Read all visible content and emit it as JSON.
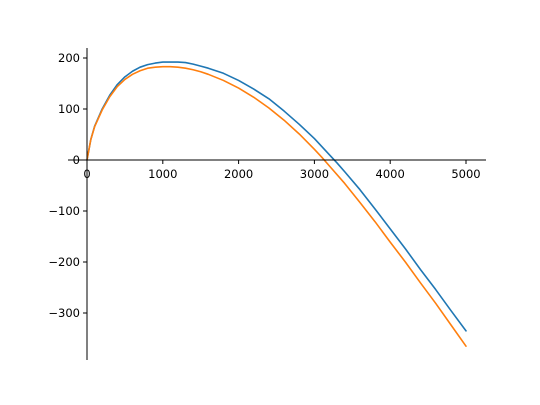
{
  "chart_data": {
    "type": "line",
    "title": "",
    "xlabel": "",
    "ylabel": "",
    "xlim": [
      0,
      5250
    ],
    "ylim": [
      -390,
      220
    ],
    "grid": false,
    "legend": "none",
    "spines": "zero-centered (left and bottom axes cross at origin)",
    "x_ticks": [
      0,
      1000,
      2000,
      3000,
      4000,
      5000
    ],
    "x_tick_labels": [
      "0",
      "1000",
      "2000",
      "3000",
      "4000",
      "5000"
    ],
    "y_ticks": [
      200,
      100,
      0,
      -100,
      -200,
      -300
    ],
    "y_tick_labels": [
      "200",
      "100",
      "0",
      "−100",
      "−200",
      "−300"
    ],
    "series": [
      {
        "color": "#1f77b4",
        "x": [
          0,
          50,
          100,
          200,
          300,
          400,
          500,
          600,
          700,
          800,
          900,
          1000,
          1100,
          1200,
          1300,
          1400,
          1500,
          1600,
          1800,
          2000,
          2200,
          2400,
          2600,
          2800,
          3000,
          3200,
          3300,
          3400,
          3600,
          3800,
          4000,
          4200,
          4400,
          4600,
          4800,
          5000
        ],
        "y": [
          0,
          40,
          66,
          100,
          127,
          148,
          163,
          174,
          182,
          187,
          190,
          192,
          192,
          192,
          191,
          188,
          184,
          180,
          170,
          156,
          139,
          120,
          96,
          70,
          42,
          10,
          -6,
          -23,
          -58,
          -96,
          -135,
          -174,
          -215,
          -254,
          -295,
          -335
        ]
      },
      {
        "color": "#ff7f0e",
        "x": [
          0,
          50,
          100,
          200,
          300,
          400,
          500,
          600,
          700,
          800,
          900,
          1000,
          1100,
          1200,
          1300,
          1400,
          1500,
          1600,
          1800,
          2000,
          2200,
          2400,
          2600,
          2800,
          3000,
          3100,
          3200,
          3400,
          3600,
          3800,
          4000,
          4200,
          4400,
          4600,
          4800,
          5000
        ],
        "y": [
          0,
          40,
          65,
          98,
          124,
          144,
          158,
          168,
          175,
          180,
          182,
          183,
          183,
          182,
          180,
          177,
          173,
          168,
          156,
          141,
          123,
          102,
          78,
          51,
          21,
          5,
          -12,
          -46,
          -83,
          -121,
          -161,
          -200,
          -241,
          -281,
          -323,
          -365
        ]
      }
    ]
  }
}
